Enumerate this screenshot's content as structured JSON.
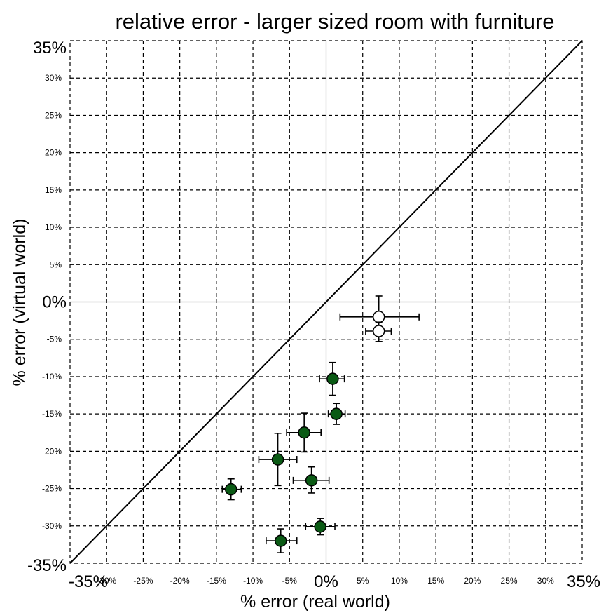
{
  "chart_data": {
    "type": "scatter",
    "title": "relative error - larger sized room with furniture",
    "xlabel": "% error (real world)",
    "ylabel": "% error (virtual world)",
    "xlim": [
      -35,
      35
    ],
    "ylim": [
      -35,
      35
    ],
    "grid": true,
    "grid_style": "dashed",
    "reference_line": "y = x",
    "colors": {
      "filled": "#0a5a14",
      "hollow": "#ffffff",
      "edge": "#000000"
    },
    "x_ticks": [
      {
        "value": -35,
        "label": "-35%",
        "size": "large"
      },
      {
        "value": -30,
        "label": "-30%",
        "size": "small"
      },
      {
        "value": -25,
        "label": "-25%",
        "size": "small"
      },
      {
        "value": -20,
        "label": "-20%",
        "size": "small"
      },
      {
        "value": -15,
        "label": "-15%",
        "size": "small"
      },
      {
        "value": -10,
        "label": "-10%",
        "size": "small"
      },
      {
        "value": -5,
        "label": "-5%",
        "size": "small"
      },
      {
        "value": 0,
        "label": "0%",
        "size": "large"
      },
      {
        "value": 5,
        "label": "5%",
        "size": "small"
      },
      {
        "value": 10,
        "label": "10%",
        "size": "small"
      },
      {
        "value": 15,
        "label": "15%",
        "size": "small"
      },
      {
        "value": 20,
        "label": "20%",
        "size": "small"
      },
      {
        "value": 25,
        "label": "25%",
        "size": "small"
      },
      {
        "value": 30,
        "label": "30%",
        "size": "small"
      },
      {
        "value": 35,
        "label": "35%",
        "size": "large"
      }
    ],
    "y_ticks": [
      {
        "value": 35,
        "label": "35%",
        "size": "large"
      },
      {
        "value": 30,
        "label": "30%",
        "size": "small"
      },
      {
        "value": 25,
        "label": "25%",
        "size": "small"
      },
      {
        "value": 20,
        "label": "20%",
        "size": "small"
      },
      {
        "value": 15,
        "label": "15%",
        "size": "small"
      },
      {
        "value": 10,
        "label": "10%",
        "size": "small"
      },
      {
        "value": 5,
        "label": "5%",
        "size": "small"
      },
      {
        "value": 0,
        "label": "0%",
        "size": "large"
      },
      {
        "value": -5,
        "label": "-5%",
        "size": "small"
      },
      {
        "value": -10,
        "label": "-10%",
        "size": "small"
      },
      {
        "value": -15,
        "label": "-15%",
        "size": "small"
      },
      {
        "value": -20,
        "label": "-20%",
        "size": "small"
      },
      {
        "value": -25,
        "label": "-25%",
        "size": "small"
      },
      {
        "value": -30,
        "label": "-30%",
        "size": "small"
      },
      {
        "value": -35,
        "label": "-35%",
        "size": "large"
      }
    ],
    "points": [
      {
        "x": 7.2,
        "y": -2.0,
        "x_err": [
          5.3,
          5.5
        ],
        "y_err": [
          3.3,
          2.8
        ],
        "filled": false
      },
      {
        "x": 7.2,
        "y": -3.9,
        "x_err": [
          1.8,
          1.7
        ],
        "y_err": [
          1.4,
          1.2
        ],
        "filled": false
      },
      {
        "x": 0.9,
        "y": -10.3,
        "x_err": [
          1.8,
          1.6
        ],
        "y_err": [
          2.2,
          2.2
        ],
        "filled": true
      },
      {
        "x": 1.4,
        "y": -15.0,
        "x_err": [
          1.1,
          1.2
        ],
        "y_err": [
          1.4,
          1.4
        ],
        "filled": true
      },
      {
        "x": -3.0,
        "y": -17.5,
        "x_err": [
          2.4,
          2.3
        ],
        "y_err": [
          2.6,
          2.6
        ],
        "filled": true
      },
      {
        "x": -6.6,
        "y": -21.1,
        "x_err": [
          2.6,
          2.6
        ],
        "y_err": [
          3.5,
          3.5
        ],
        "filled": true
      },
      {
        "x": -2.0,
        "y": -23.9,
        "x_err": [
          2.5,
          2.4
        ],
        "y_err": [
          1.7,
          1.8
        ],
        "filled": true
      },
      {
        "x": -13.0,
        "y": -25.1,
        "x_err": [
          1.2,
          1.4
        ],
        "y_err": [
          1.4,
          1.4
        ],
        "filled": true
      },
      {
        "x": -0.8,
        "y": -30.1,
        "x_err": [
          2.0,
          2.0
        ],
        "y_err": [
          1.1,
          1.1
        ],
        "filled": true
      },
      {
        "x": -6.2,
        "y": -32.0,
        "x_err": [
          2.0,
          2.2
        ],
        "y_err": [
          1.6,
          1.6
        ],
        "filled": true
      }
    ]
  }
}
